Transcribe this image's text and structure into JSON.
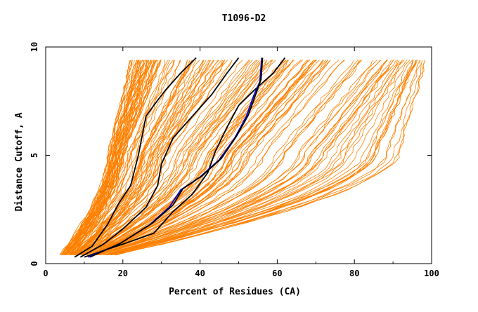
{
  "chart_data": {
    "type": "line",
    "title": "T1096-D2",
    "xlabel": "Percent of Residues (CA)",
    "ylabel": "Distance Cutoff, A",
    "xlim": [
      0,
      100
    ],
    "ylim": [
      0,
      10
    ],
    "x_ticks": [
      "0",
      "20",
      "40",
      "60",
      "80",
      "100"
    ],
    "y_ticks": [
      "0",
      "5",
      "10"
    ],
    "grid": false,
    "legend": "none",
    "colors": {
      "background_curves": "#ff8000",
      "highlight_black": "#000000",
      "highlight_blue": "#0000cc",
      "axes": "#000000"
    },
    "background_envelopes": [
      {
        "x_at_0_4": 4,
        "x_at_5": 16,
        "x_at_9_5": 22,
        "count": 45
      },
      {
        "x_at_0_4": 6,
        "x_at_5": 20,
        "x_at_9_5": 30,
        "count": 40
      },
      {
        "x_at_0_4": 9,
        "x_at_5": 33,
        "x_at_9_5": 52,
        "count": 30
      },
      {
        "x_at_0_4": 12,
        "x_at_5": 48,
        "x_at_9_5": 70,
        "count": 30
      },
      {
        "x_at_0_4": 14,
        "x_at_5": 70,
        "x_at_9_5": 90,
        "count": 25
      },
      {
        "x_at_0_4": 18,
        "x_at_5": 92,
        "x_at_9_5": 99,
        "count": 90
      }
    ],
    "series": [
      {
        "color": "black",
        "points": [
          [
            7.5,
            0.3
          ],
          [
            12,
            0.8
          ],
          [
            16,
            1.8
          ],
          [
            19,
            2.8
          ],
          [
            22,
            3.6
          ],
          [
            24,
            5
          ],
          [
            26,
            6.8
          ],
          [
            28,
            7.3
          ],
          [
            31,
            8
          ],
          [
            35,
            8.8
          ],
          [
            39,
            9.5
          ]
        ]
      },
      {
        "color": "black",
        "points": [
          [
            9,
            0.3
          ],
          [
            15,
            0.9
          ],
          [
            20,
            1.6
          ],
          [
            26,
            2.6
          ],
          [
            29,
            3.6
          ],
          [
            30,
            4.6
          ],
          [
            33,
            5.8
          ],
          [
            38,
            6.8
          ],
          [
            43,
            7.8
          ],
          [
            47,
            8.8
          ],
          [
            50,
            9.5
          ]
        ]
      },
      {
        "color": "black",
        "points": [
          [
            10,
            0.3
          ],
          [
            20,
            0.9
          ],
          [
            28,
            1.4
          ],
          [
            33,
            2.4
          ],
          [
            38,
            3.2
          ],
          [
            42,
            4.2
          ],
          [
            44,
            5.2
          ],
          [
            47,
            6.3
          ],
          [
            50,
            7.3
          ],
          [
            54,
            8
          ],
          [
            59,
            8.8
          ],
          [
            62,
            9.5
          ]
        ]
      },
      {
        "color": "blue",
        "points": [
          [
            11,
            0.3
          ],
          [
            19,
            0.9
          ],
          [
            27,
            1.8
          ],
          [
            32,
            2.6
          ],
          [
            35,
            3.4
          ],
          [
            40,
            4
          ],
          [
            45,
            4.8
          ],
          [
            49,
            5.8
          ],
          [
            52,
            6.8
          ],
          [
            54,
            7.8
          ],
          [
            55.5,
            8.4
          ],
          [
            56,
            9.5
          ]
        ]
      },
      {
        "color": "black",
        "points": [
          [
            11.5,
            0.3
          ],
          [
            19.5,
            0.95
          ],
          [
            27.5,
            1.85
          ],
          [
            33,
            2.7
          ],
          [
            35.5,
            3.45
          ],
          [
            40.5,
            4.05
          ],
          [
            45.5,
            4.85
          ],
          [
            49.5,
            5.9
          ],
          [
            52.5,
            6.85
          ],
          [
            54.5,
            7.85
          ],
          [
            55.8,
            8.5
          ],
          [
            56.2,
            9.5
          ]
        ]
      }
    ]
  }
}
